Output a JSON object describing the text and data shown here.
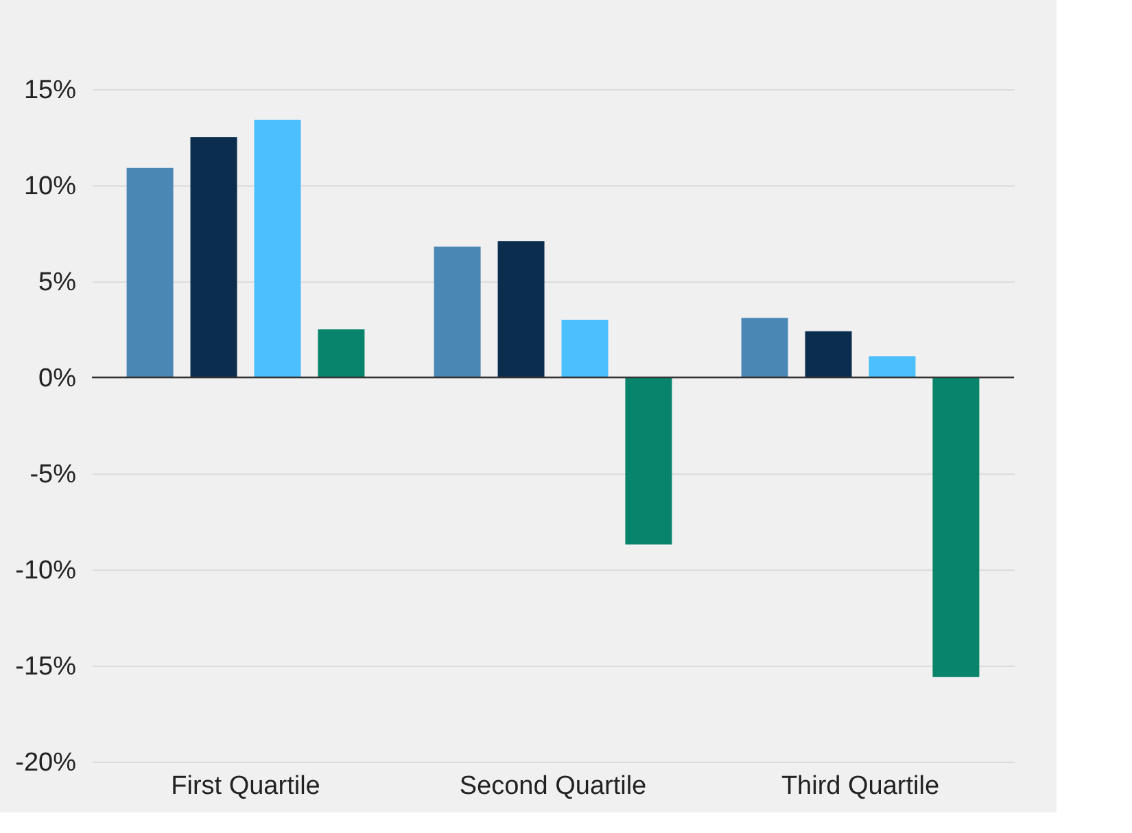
{
  "chart_data": {
    "type": "bar",
    "categories": [
      "First Quartile",
      "Second Quartile",
      "Third Quartile"
    ],
    "series": [
      {
        "color": "#4a87b5",
        "values": [
          10.9,
          6.8,
          3.1
        ]
      },
      {
        "color": "#0b2e4f",
        "values": [
          12.5,
          7.1,
          2.4
        ]
      },
      {
        "color": "#4cbfff",
        "values": [
          13.4,
          3.0,
          1.1
        ]
      },
      {
        "color": "#08846c",
        "values": [
          2.5,
          -8.7,
          -15.6
        ]
      }
    ],
    "ylim": [
      -20,
      15
    ],
    "yticks": [
      {
        "value": -20,
        "label": "-20%"
      },
      {
        "value": -15,
        "label": "-15%"
      },
      {
        "value": -10,
        "label": "-10%"
      },
      {
        "value": -5,
        "label": "-5%"
      },
      {
        "value": 0,
        "label": "0%"
      },
      {
        "value": 5,
        "label": "5%"
      },
      {
        "value": 10,
        "label": "10%"
      },
      {
        "value": 15,
        "label": "15%"
      }
    ],
    "grid": "y",
    "legend": false
  }
}
